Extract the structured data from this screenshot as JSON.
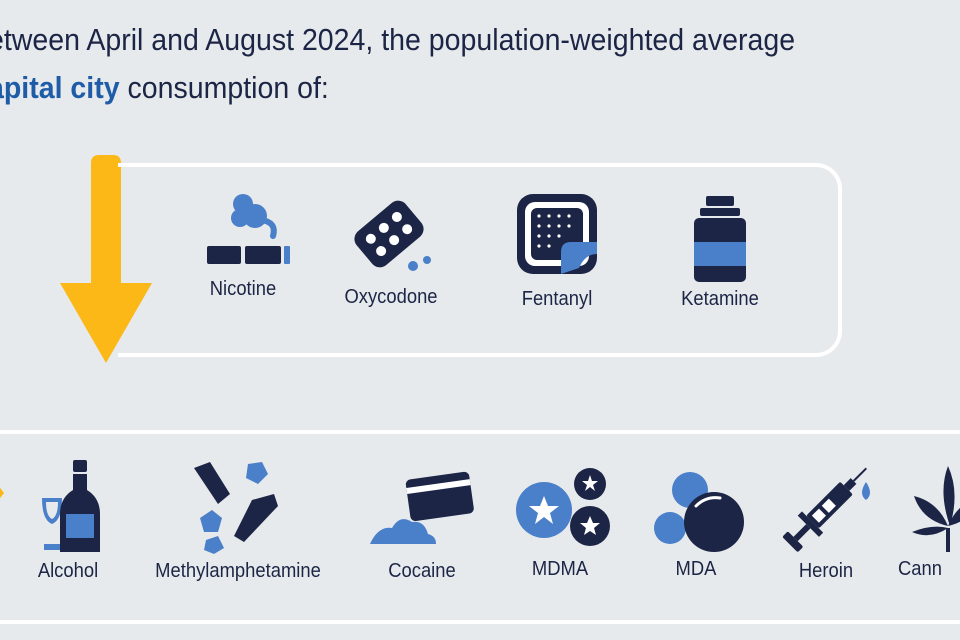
{
  "heading": {
    "line1": "etween April and August 2024, the population-weighted average",
    "line2_highlight": "apital city",
    "line2_rest": " consumption of:"
  },
  "decrease_group": {
    "arrow_color": "#fbb817",
    "items": [
      {
        "label": "Nicotine",
        "icon": "cigarette-icon"
      },
      {
        "label": "Oxycodone",
        "icon": "blister-pack-icon"
      },
      {
        "label": "Fentanyl",
        "icon": "patch-icon"
      },
      {
        "label": "Ketamine",
        "icon": "vial-icon"
      }
    ]
  },
  "increase_group": {
    "items": [
      {
        "label": "Alcohol",
        "icon": "wine-bottle-icon"
      },
      {
        "label": "Methylamphetamine",
        "icon": "crystals-icon"
      },
      {
        "label": "Cocaine",
        "icon": "card-powder-icon"
      },
      {
        "label": "MDMA",
        "icon": "star-pills-icon"
      },
      {
        "label": "MDA",
        "icon": "pills-icon"
      },
      {
        "label": "Heroin",
        "icon": "syringe-icon"
      },
      {
        "label": "Cann",
        "icon": "cannabis-leaf-icon"
      }
    ]
  },
  "colors": {
    "navy": "#1c2545",
    "blue": "#4a7fc9",
    "heading_blue": "#1f5ca8",
    "yellow": "#fbb817",
    "background": "#e7eaec"
  }
}
